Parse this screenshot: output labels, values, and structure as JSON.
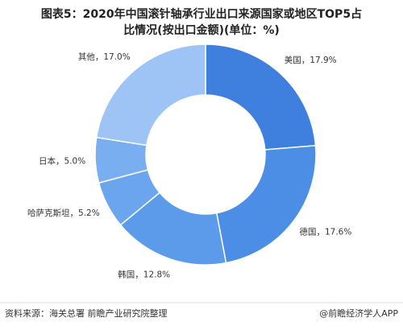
{
  "chart_data": {
    "type": "donut",
    "title": [
      "图表5：2020年中国滚针轴承行业出口来源国家或地区TOP5占",
      "比情况(按出口金额)(单位：%)"
    ],
    "categories": [
      "美国",
      "德国",
      "韩国",
      "哈萨克斯坦",
      "日本",
      "其他"
    ],
    "values": [
      17.9,
      17.6,
      12.8,
      5.2,
      5.0,
      17.0
    ],
    "value_labels": [
      "17.9%",
      "17.6%",
      "12.8%",
      "5.2%",
      "5.0%",
      "17.0%"
    ],
    "label_separator": "，",
    "colors": [
      "#3f80de",
      "#4c8ee6",
      "#5b9be9",
      "#6aa5ed",
      "#79aff0",
      "#9dc4f4"
    ]
  },
  "footer": {
    "source": "资料来源：海关总署 前瞻产业研究院整理",
    "brand": "@前瞻经济学人APP"
  }
}
